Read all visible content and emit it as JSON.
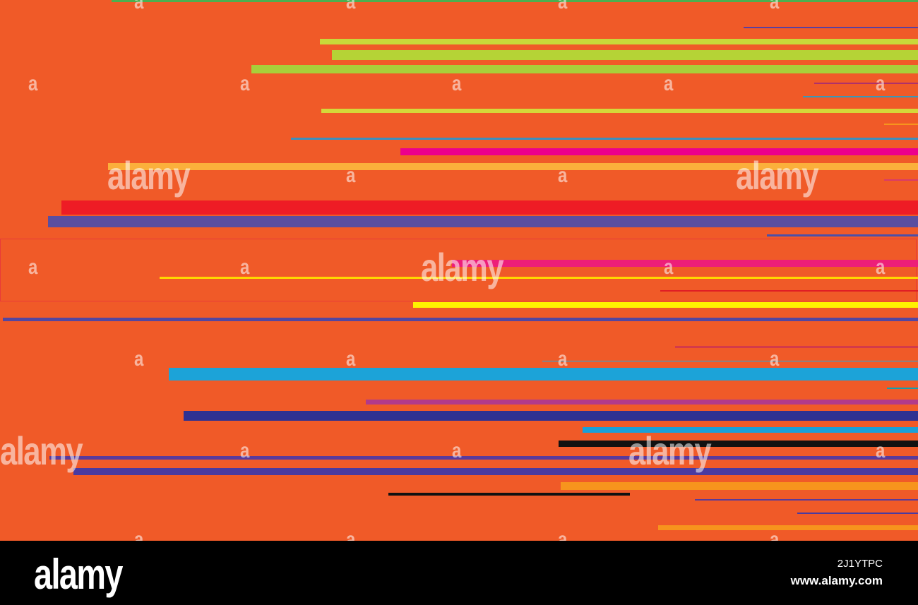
{
  "artwork": {
    "background_color": "#F05A28",
    "stripe_colors": [
      "#4CAF50",
      "#5B3FA0",
      "#C8D83A",
      "#B5D336",
      "#A8CF3A",
      "#B0306A",
      "#3A97B8",
      "#D4D83A",
      "#F7941D",
      "#3A90C0",
      "#EC008C",
      "#FBB03B",
      "#D93A6A",
      "#EE1C25",
      "#5A4EA0",
      "#4B4FA8",
      "#ED1E79",
      "#FFD700",
      "#E01E25",
      "#FFF200",
      "#5446A0",
      "#D43A4A",
      "#1EAAE1",
      "#1CA3D8",
      "#12A0B0",
      "#B23A8A",
      "#2E3192",
      "#1AA0D8",
      "#111111",
      "#5A3A9A",
      "#4A3AA0",
      "#F7941D"
    ],
    "watermark_small": "a",
    "watermark_big": "alamy"
  },
  "footer": {
    "brand": "alamy",
    "image_id": "2J1YTPC",
    "site_url": "www.alamy.com"
  }
}
